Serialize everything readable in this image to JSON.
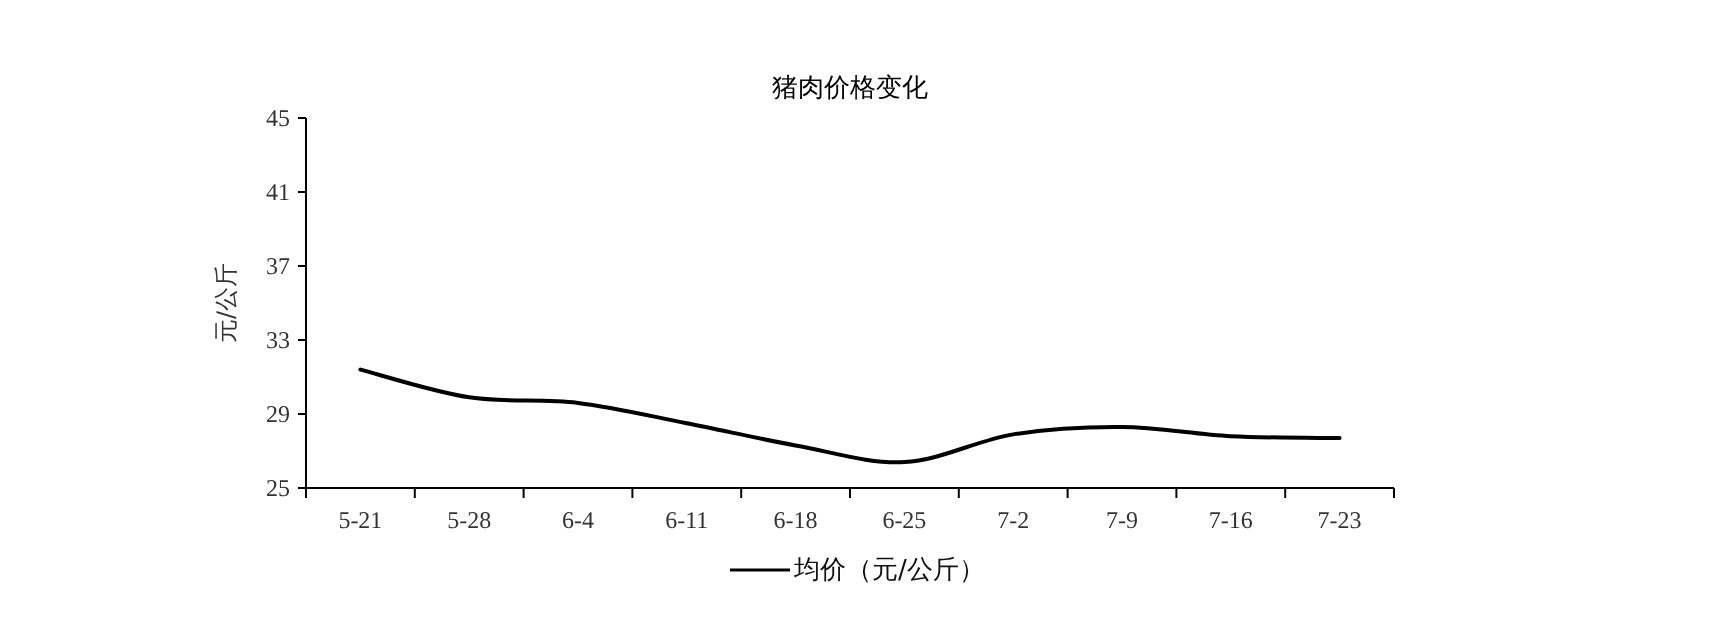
{
  "chart_data": {
    "type": "line",
    "title": "猪肉价格变化",
    "ylabel": "元/公斤",
    "categories": [
      "5-21",
      "5-28",
      "6-4",
      "6-11",
      "6-18",
      "6-25",
      "7-2",
      "7-9",
      "7-16",
      "7-23"
    ],
    "series": [
      {
        "name": "均价（元/公斤）",
        "color": "#000000",
        "values": [
          31.4,
          29.9,
          29.6,
          28.5,
          27.3,
          26.4,
          27.9,
          28.3,
          27.8,
          27.7
        ]
      }
    ],
    "ylim": [
      25,
      45
    ],
    "yticks": [
      25,
      29,
      33,
      37,
      41,
      45
    ],
    "legend": "bottom",
    "grid": false,
    "marker": "none",
    "line_style": "solid"
  }
}
